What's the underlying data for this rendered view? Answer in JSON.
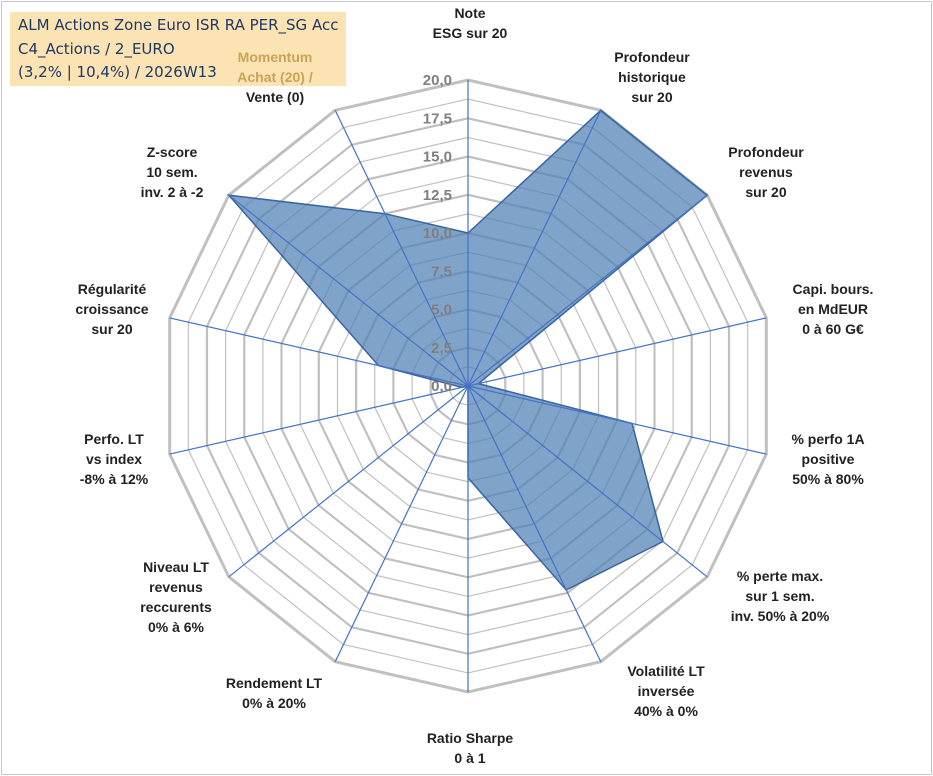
{
  "title_box": {
    "lines": [
      "ALM Actions Zone Euro ISR RA PER_SG Acc",
      "C4_Actions / 2_EURO",
      "(3,2% | 10,4%) / 2026W13"
    ]
  },
  "colors": {
    "fill": "#4f7fb6",
    "fill_opacity": 0.72,
    "stroke": "#3a64a0",
    "grid": "#c0c0c0",
    "spokes": "#4472c4",
    "title_bg": "#fbe3b3",
    "title_text": "#1f3864"
  },
  "chart_data": {
    "type": "radar",
    "rmin": 0,
    "rmax": 20,
    "tick_step": 2.5,
    "tick_labels": [
      "0,0",
      "2,5",
      "5,0",
      "7,5",
      "10,0",
      "12,5",
      "15,0",
      "17,5",
      "20,0"
    ],
    "axes": [
      {
        "label": [
          "Note",
          "ESG sur 20"
        ],
        "value": 10
      },
      {
        "label": [
          "Profondeur",
          "historique",
          "sur 20"
        ],
        "value": 20
      },
      {
        "label": [
          "Profondeur",
          "revenus",
          "sur 20"
        ],
        "value": 20
      },
      {
        "label": [
          "Capi. bours.",
          "en MdEUR",
          "0 à 60 G€"
        ],
        "value": 0.7
      },
      {
        "label": [
          "% perfo 1A",
          "positive",
          "50% à 80%"
        ],
        "value": 11
      },
      {
        "label": [
          "% perte max.",
          "sur 1 sem.",
          "inv. 50% à 20%"
        ],
        "value": 16.3
      },
      {
        "label": [
          "Volatilité LT",
          "inversée",
          "40% à 0%"
        ],
        "value": 14.8
      },
      {
        "label": [
          "Ratio Sharpe",
          "0 à 1"
        ],
        "value": 6
      },
      {
        "label": [
          "Rendement LT",
          "0% à 20%"
        ],
        "value": 0
      },
      {
        "label": [
          "Niveau LT",
          "revenus",
          "reccurents",
          "0% à 6%"
        ],
        "value": 0
      },
      {
        "label": [
          "Perfo. LT",
          "vs index",
          "-8% à 12%"
        ],
        "value": 0.4
      },
      {
        "label": [
          "Régularité",
          "croissance",
          "sur 20"
        ],
        "value": 6
      },
      {
        "label": [
          "Z-score",
          "10 sem.",
          "inv. 2 à -2"
        ],
        "value": 20
      },
      {
        "label": [
          "Momentum",
          "Achat (20) /",
          "Vente (0)"
        ],
        "value": 12.5
      }
    ]
  }
}
